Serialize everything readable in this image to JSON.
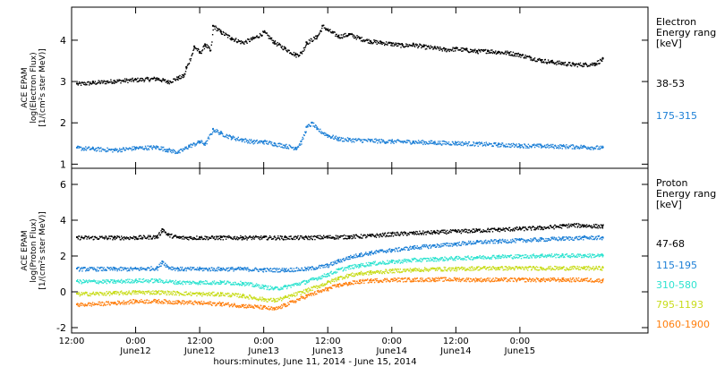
{
  "chart_data": [
    {
      "type": "scatter",
      "panel": "electron",
      "ylabel_lines": [
        "ACE EPAM",
        "log(Electron Flux)",
        "[1/(cm²s ster MeV)]"
      ],
      "legend_title_lines": [
        "Electron",
        "Energy ranges",
        "[keV]"
      ],
      "xlim_hours": [
        -12,
        96
      ],
      "ylim": [
        0.9,
        4.8
      ],
      "yticks": [
        1,
        2,
        3,
        4
      ],
      "series": [
        {
          "name": "38-53",
          "color": "#000000",
          "x": [
            -11,
            -8,
            -4,
            0,
            4,
            6,
            8,
            9,
            9.5,
            11,
            12,
            13,
            14,
            14.5,
            16,
            18,
            20,
            22,
            24,
            26,
            28,
            30,
            31,
            32,
            34,
            35,
            36,
            38,
            40,
            42,
            44,
            46,
            48,
            50,
            52,
            54,
            56,
            58,
            60,
            62,
            64,
            66,
            68,
            70,
            72,
            74,
            76,
            78,
            80,
            82,
            84,
            86,
            87.5
          ],
          "y": [
            2.95,
            2.98,
            3.02,
            3.05,
            3.08,
            3.0,
            3.1,
            3.15,
            3.35,
            3.85,
            3.7,
            3.9,
            3.75,
            4.35,
            4.2,
            4.05,
            3.95,
            4.05,
            4.2,
            3.95,
            3.8,
            3.65,
            3.7,
            3.95,
            4.1,
            4.35,
            4.25,
            4.1,
            4.15,
            4.05,
            3.98,
            3.95,
            3.92,
            3.88,
            3.9,
            3.85,
            3.82,
            3.78,
            3.8,
            3.77,
            3.74,
            3.75,
            3.72,
            3.7,
            3.65,
            3.58,
            3.52,
            3.48,
            3.45,
            3.42,
            3.42,
            3.44,
            3.55
          ]
        },
        {
          "name": "175-315",
          "color": "#1c7fd6",
          "x": [
            -11,
            -8,
            -4,
            0,
            4,
            6,
            8,
            10,
            12,
            13,
            14.5,
            16,
            18,
            20,
            22,
            24,
            26,
            28,
            30,
            31,
            32,
            33,
            34,
            36,
            38,
            40,
            44,
            48,
            52,
            56,
            60,
            64,
            68,
            72,
            76,
            80,
            84,
            87.5
          ],
          "y": [
            1.4,
            1.38,
            1.35,
            1.4,
            1.42,
            1.35,
            1.3,
            1.45,
            1.55,
            1.5,
            1.85,
            1.75,
            1.65,
            1.6,
            1.55,
            1.55,
            1.5,
            1.45,
            1.4,
            1.55,
            1.9,
            2.0,
            1.85,
            1.7,
            1.62,
            1.6,
            1.58,
            1.56,
            1.55,
            1.53,
            1.52,
            1.5,
            1.48,
            1.46,
            1.45,
            1.44,
            1.43,
            1.4
          ]
        }
      ]
    },
    {
      "type": "scatter",
      "panel": "proton",
      "ylabel_lines": [
        "ACE EPAM",
        "log(Proton Flux)",
        "[1/(cm²s ster MeV)]"
      ],
      "legend_title_lines": [
        "Proton",
        "Energy ranges",
        "[keV]"
      ],
      "xlim_hours": [
        -12,
        96
      ],
      "ylim": [
        -2.3,
        6.9
      ],
      "yticks": [
        -2,
        0,
        2,
        4,
        6
      ],
      "xticks": [
        {
          "t": -12,
          "time": "12:00",
          "date": ""
        },
        {
          "t": 0,
          "time": "0:00",
          "date": "June12"
        },
        {
          "t": 12,
          "time": "12:00",
          "date": "June12"
        },
        {
          "t": 24,
          "time": "0:00",
          "date": "June13"
        },
        {
          "t": 36,
          "time": "12:00",
          "date": "June13"
        },
        {
          "t": 48,
          "time": "0:00",
          "date": "June14"
        },
        {
          "t": 60,
          "time": "12:00",
          "date": "June14"
        },
        {
          "t": 72,
          "time": "0:00",
          "date": "June15"
        }
      ],
      "xlabel": "hours:minutes, June 11, 2014 - June 15, 2014",
      "series": [
        {
          "name": "47-68",
          "color": "#000000",
          "x": [
            -11,
            -4,
            0,
            4,
            5,
            6,
            8,
            12,
            16,
            20,
            24,
            28,
            32,
            36,
            40,
            44,
            48,
            52,
            56,
            60,
            64,
            68,
            72,
            76,
            80,
            82,
            84,
            87.5
          ],
          "y": [
            3.05,
            3.05,
            3.05,
            3.1,
            3.5,
            3.2,
            3.05,
            3.05,
            3.05,
            3.05,
            3.05,
            3.05,
            3.05,
            3.08,
            3.1,
            3.15,
            3.25,
            3.3,
            3.35,
            3.4,
            3.45,
            3.5,
            3.55,
            3.6,
            3.7,
            3.75,
            3.72,
            3.68
          ]
        },
        {
          "name": "115-195",
          "color": "#1c7fd6",
          "x": [
            -11,
            -4,
            0,
            4,
            5,
            6,
            8,
            12,
            16,
            20,
            24,
            28,
            32,
            36,
            38,
            40,
            42,
            44,
            46,
            48,
            52,
            56,
            60,
            64,
            68,
            72,
            76,
            80,
            84,
            87.5
          ],
          "y": [
            1.3,
            1.3,
            1.3,
            1.35,
            1.7,
            1.4,
            1.3,
            1.3,
            1.3,
            1.3,
            1.25,
            1.25,
            1.3,
            1.5,
            1.75,
            1.95,
            2.1,
            2.2,
            2.3,
            2.35,
            2.5,
            2.6,
            2.7,
            2.8,
            2.85,
            2.9,
            2.95,
            3.0,
            3.05,
            3.05
          ]
        },
        {
          "name": "310-580",
          "color": "#2ee3d0",
          "x": [
            -11,
            -4,
            0,
            4,
            8,
            12,
            16,
            20,
            24,
            26,
            28,
            32,
            36,
            38,
            40,
            42,
            44,
            48,
            52,
            56,
            60,
            64,
            68,
            72,
            76,
            80,
            84,
            87.5
          ],
          "y": [
            0.6,
            0.6,
            0.65,
            0.65,
            0.55,
            0.55,
            0.55,
            0.5,
            0.3,
            0.2,
            0.3,
            0.6,
            1.0,
            1.25,
            1.4,
            1.5,
            1.6,
            1.7,
            1.8,
            1.85,
            1.9,
            1.95,
            2.0,
            2.0,
            2.05,
            2.05,
            2.05,
            2.05
          ]
        },
        {
          "name": "795-1193",
          "color": "#c8dc1a",
          "x": [
            -11,
            -4,
            0,
            4,
            8,
            12,
            16,
            20,
            24,
            26,
            28,
            32,
            36,
            38,
            40,
            42,
            44,
            48,
            52,
            56,
            60,
            64,
            68,
            72,
            76,
            80,
            84,
            87.5
          ],
          "y": [
            -0.1,
            -0.05,
            0.0,
            0.0,
            -0.05,
            -0.1,
            -0.1,
            -0.2,
            -0.4,
            -0.45,
            -0.3,
            0.1,
            0.55,
            0.8,
            0.95,
            1.05,
            1.1,
            1.2,
            1.25,
            1.3,
            1.3,
            1.35,
            1.35,
            1.35,
            1.35,
            1.35,
            1.35,
            1.35
          ]
        },
        {
          "name": "1060-1900",
          "color": "#ff7f0e",
          "x": [
            -11,
            -4,
            0,
            4,
            8,
            12,
            16,
            20,
            24,
            26,
            28,
            32,
            36,
            38,
            40,
            42,
            44,
            48,
            52,
            56,
            60,
            64,
            68,
            72,
            76,
            80,
            84,
            87.5
          ],
          "y": [
            -0.7,
            -0.6,
            -0.5,
            -0.5,
            -0.55,
            -0.6,
            -0.65,
            -0.75,
            -0.85,
            -0.95,
            -0.7,
            -0.2,
            0.2,
            0.4,
            0.5,
            0.6,
            0.65,
            0.7,
            0.7,
            0.72,
            0.72,
            0.7,
            0.7,
            0.7,
            0.7,
            0.7,
            0.7,
            0.65
          ]
        }
      ]
    }
  ]
}
